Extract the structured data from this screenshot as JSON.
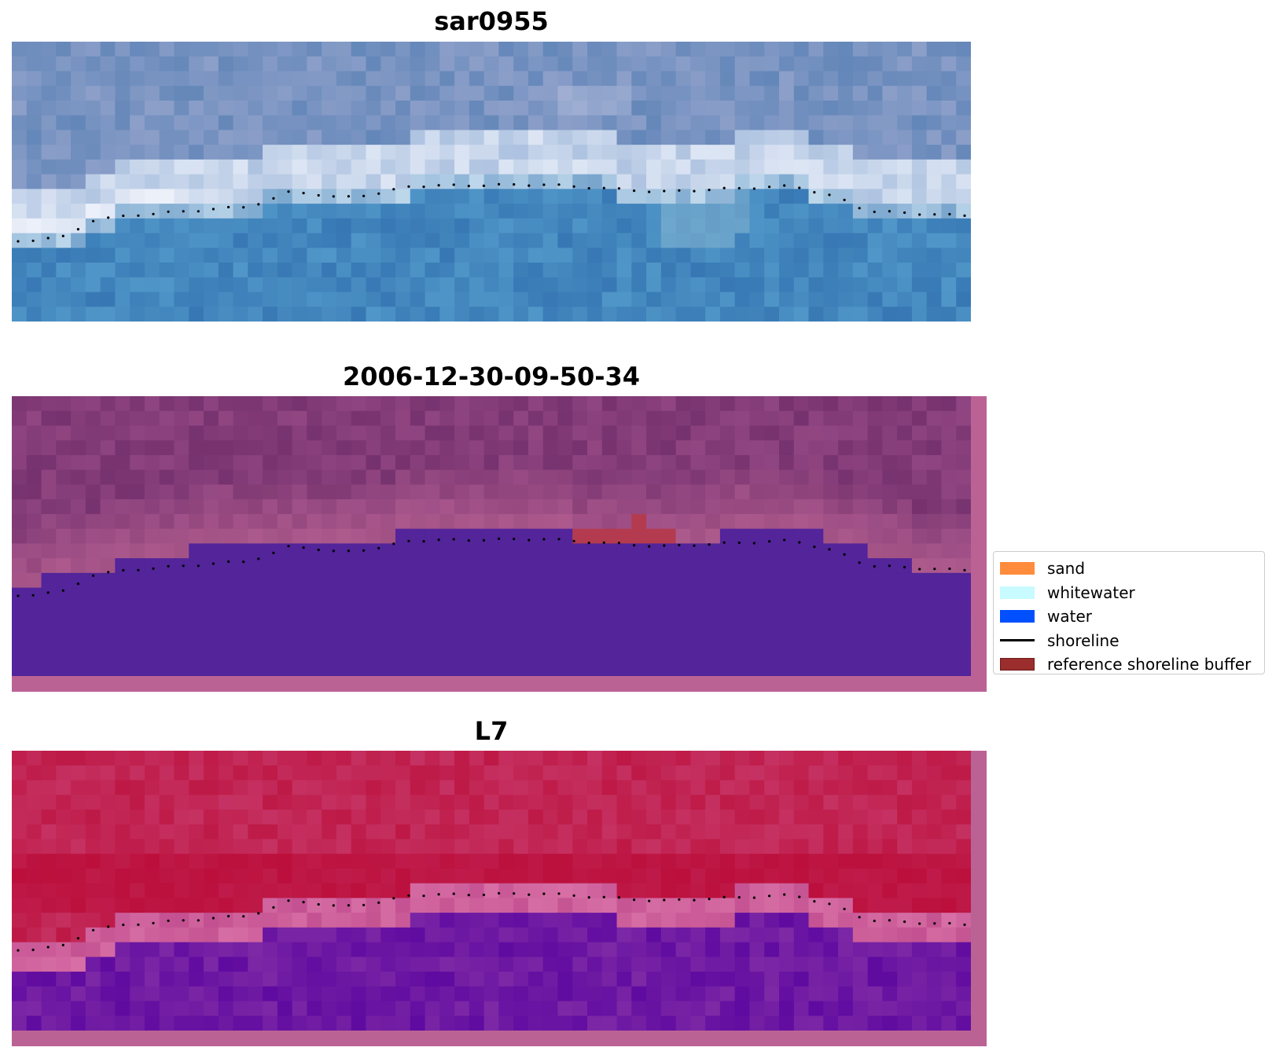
{
  "panels": [
    {
      "title": "sar0955",
      "kind": "rgb"
    },
    {
      "title": "2006-12-30-09-50-34",
      "kind": "classified"
    },
    {
      "title": "L7",
      "kind": "falsecolor"
    }
  ],
  "legend": {
    "items": [
      {
        "label": "sand",
        "type": "patch",
        "color": "#ff8c3c"
      },
      {
        "label": "whitewater",
        "type": "patch",
        "color": "#c8fbff"
      },
      {
        "label": "water",
        "type": "patch",
        "color": "#0050ff"
      },
      {
        "label": "shoreline",
        "type": "line",
        "color": "#000000"
      },
      {
        "label": "reference shoreline buffer",
        "type": "patch",
        "color": "#9b2d2d"
      }
    ]
  },
  "colors": {
    "water_class": "#53249a",
    "pink_border": "#bb6295",
    "buffer": "#b43b4f"
  }
}
